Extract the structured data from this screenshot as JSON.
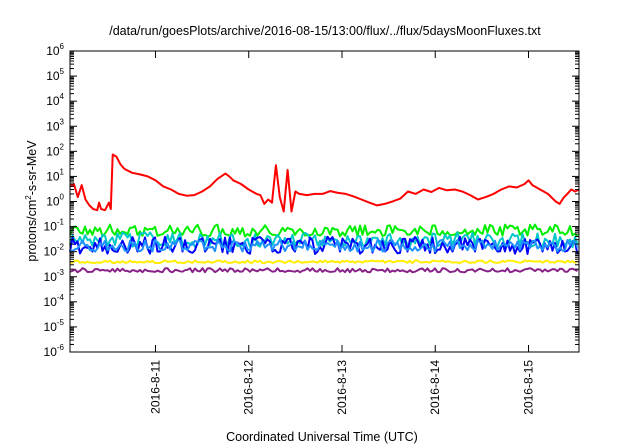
{
  "chart_data": {
    "type": "line",
    "title": "/data/run/goesPlots/archive/2016-08-15/13:00/flux/../flux/5daysMoonFluxes.txt",
    "xlabel": "Coordinated Universal Time (UTC)",
    "ylabel": {
      "prefix": "protons/cm",
      "sup": "2",
      "suffix": "-s-sr-MeV"
    },
    "x_ticks": [
      "2016-8-11",
      "2016-8-12",
      "2016-8-13",
      "2016-8-14",
      "2016-8-15"
    ],
    "y_ticks": [
      {
        "base": "10",
        "exp": "6"
      },
      {
        "base": "10",
        "exp": "5"
      },
      {
        "base": "10",
        "exp": "4"
      },
      {
        "base": "10",
        "exp": "3"
      },
      {
        "base": "10",
        "exp": "2"
      },
      {
        "base": "10",
        "exp": "1"
      },
      {
        "base": "10",
        "exp": "0"
      },
      {
        "base": "10",
        "exp": "-1"
      },
      {
        "base": "10",
        "exp": "-2"
      },
      {
        "base": "10",
        "exp": "-3"
      },
      {
        "base": "10",
        "exp": "-4"
      },
      {
        "base": "10",
        "exp": "-5"
      },
      {
        "base": "10",
        "exp": "-6"
      }
    ],
    "x_range": [
      "2016-08-10T02:00",
      "2016-08-15T13:00"
    ],
    "y_range": [
      1e-06,
      1000000.0
    ],
    "y_scale": "log",
    "grid": false,
    "series": [
      {
        "color": "#ff0000",
        "points": [
          [
            "2016-08-10T02:00",
            4.0
          ],
          [
            "2016-08-10T03:00",
            5.0
          ],
          [
            "2016-08-10T04:00",
            1.5
          ],
          [
            "2016-08-10T05:00",
            4.5
          ],
          [
            "2016-08-10T06:00",
            1.2
          ],
          [
            "2016-08-10T07:00",
            0.7
          ],
          [
            "2016-08-10T08:00",
            0.5
          ],
          [
            "2016-08-10T09:00",
            0.45
          ],
          [
            "2016-08-10T09:30",
            0.9
          ],
          [
            "2016-08-10T10:00",
            0.5
          ],
          [
            "2016-08-10T11:00",
            0.45
          ],
          [
            "2016-08-10T12:00",
            0.9
          ],
          [
            "2016-08-10T12:30",
            0.5
          ],
          [
            "2016-08-10T13:00",
            75
          ],
          [
            "2016-08-10T14:00",
            60
          ],
          [
            "2016-08-10T15:00",
            30
          ],
          [
            "2016-08-10T16:00",
            20
          ],
          [
            "2016-08-10T18:00",
            14
          ],
          [
            "2016-08-10T20:00",
            12
          ],
          [
            "2016-08-10T22:00",
            10
          ],
          [
            "2016-08-11T00:00",
            7
          ],
          [
            "2016-08-11T02:00",
            4
          ],
          [
            "2016-08-11T04:00",
            3
          ],
          [
            "2016-08-11T06:00",
            2
          ],
          [
            "2016-08-11T08:00",
            1.7
          ],
          [
            "2016-08-11T10:00",
            1.8
          ],
          [
            "2016-08-11T12:00",
            2.5
          ],
          [
            "2016-08-11T14:00",
            4
          ],
          [
            "2016-08-11T16:00",
            8
          ],
          [
            "2016-08-11T18:00",
            13
          ],
          [
            "2016-08-11T19:00",
            10
          ],
          [
            "2016-08-11T20:00",
            7
          ],
          [
            "2016-08-11T22:00",
            5
          ],
          [
            "2016-08-12T00:00",
            3
          ],
          [
            "2016-08-12T02:00",
            2
          ],
          [
            "2016-08-12T03:00",
            1.8
          ],
          [
            "2016-08-12T04:00",
            0.8
          ],
          [
            "2016-08-12T05:00",
            1.2
          ],
          [
            "2016-08-12T06:00",
            0.9
          ],
          [
            "2016-08-12T07:00",
            28
          ],
          [
            "2016-08-12T08:00",
            1.5
          ],
          [
            "2016-08-12T09:00",
            0.4
          ],
          [
            "2016-08-12T10:00",
            18
          ],
          [
            "2016-08-12T11:00",
            0.4
          ],
          [
            "2016-08-12T12:00",
            2.5
          ],
          [
            "2016-08-12T13:00",
            2.0
          ],
          [
            "2016-08-12T15:00",
            1.8
          ],
          [
            "2016-08-12T17:00",
            2.0
          ],
          [
            "2016-08-12T19:00",
            2.0
          ],
          [
            "2016-08-12T21:00",
            2.6
          ],
          [
            "2016-08-12T23:00",
            2.2
          ],
          [
            "2016-08-13T01:00",
            2.0
          ],
          [
            "2016-08-13T03:00",
            1.6
          ],
          [
            "2016-08-13T05:00",
            1.2
          ],
          [
            "2016-08-13T07:00",
            0.9
          ],
          [
            "2016-08-13T09:00",
            0.7
          ],
          [
            "2016-08-13T11:00",
            0.8
          ],
          [
            "2016-08-13T13:00",
            1.0
          ],
          [
            "2016-08-13T15:00",
            1.3
          ],
          [
            "2016-08-13T17:00",
            2.5
          ],
          [
            "2016-08-13T19:00",
            2.0
          ],
          [
            "2016-08-13T21:00",
            3.0
          ],
          [
            "2016-08-13T23:00",
            2.4
          ],
          [
            "2016-08-14T01:00",
            3.5
          ],
          [
            "2016-08-14T03:00",
            2.8
          ],
          [
            "2016-08-14T05:00",
            3.0
          ],
          [
            "2016-08-14T07:00",
            2.5
          ],
          [
            "2016-08-14T09:00",
            1.8
          ],
          [
            "2016-08-14T11:00",
            1.2
          ],
          [
            "2016-08-14T13:00",
            1.5
          ],
          [
            "2016-08-14T15:00",
            2.0
          ],
          [
            "2016-08-14T17:00",
            3.0
          ],
          [
            "2016-08-14T19:00",
            4.0
          ],
          [
            "2016-08-14T21:00",
            3.6
          ],
          [
            "2016-08-14T23:00",
            5.0
          ],
          [
            "2016-08-15T00:00",
            7.0
          ],
          [
            "2016-08-15T01:00",
            4.5
          ],
          [
            "2016-08-15T03:00",
            3.0
          ],
          [
            "2016-08-15T05:00",
            2.0
          ],
          [
            "2016-08-15T07:00",
            1.0
          ],
          [
            "2016-08-15T08:00",
            0.8
          ],
          [
            "2016-08-15T09:00",
            1.4
          ],
          [
            "2016-08-15T10:00",
            2.0
          ],
          [
            "2016-08-15T11:00",
            3.0
          ],
          [
            "2016-08-15T12:00",
            2.5
          ],
          [
            "2016-08-15T13:00",
            3.0
          ]
        ]
      },
      {
        "color": "#00ee00",
        "band": [
          0.04,
          0.12
        ]
      },
      {
        "color": "#00c8c8",
        "band": [
          0.015,
          0.06
        ]
      },
      {
        "color": "#0000ff",
        "band": [
          0.008,
          0.04
        ]
      },
      {
        "color": "#1e90ff",
        "band": [
          0.01,
          0.03
        ]
      },
      {
        "color": "#ffee00",
        "band": [
          0.0035,
          0.0045
        ]
      },
      {
        "color": "#882288",
        "band": [
          0.0015,
          0.0022
        ]
      }
    ]
  }
}
